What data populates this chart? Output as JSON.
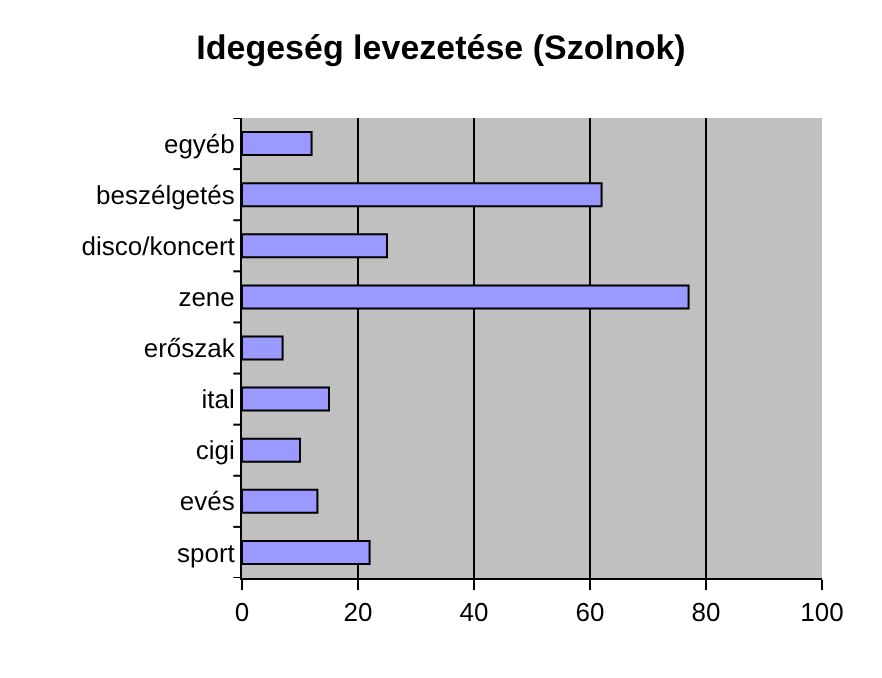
{
  "chart_data": {
    "type": "bar",
    "orientation": "horizontal",
    "title": "Idegeség levezetése (Szolnok)",
    "categories": [
      "egyéb",
      "beszélgetés",
      "disco/koncert",
      "zene",
      "erőszak",
      "ital",
      "cigi",
      "evés",
      "sport"
    ],
    "values": [
      12,
      62,
      25,
      77,
      7,
      15,
      10,
      13,
      22
    ],
    "color": "#9999ff",
    "xlim": [
      0,
      100
    ],
    "xticks": [
      0,
      20,
      40,
      60,
      80,
      100
    ],
    "grid": "x"
  }
}
